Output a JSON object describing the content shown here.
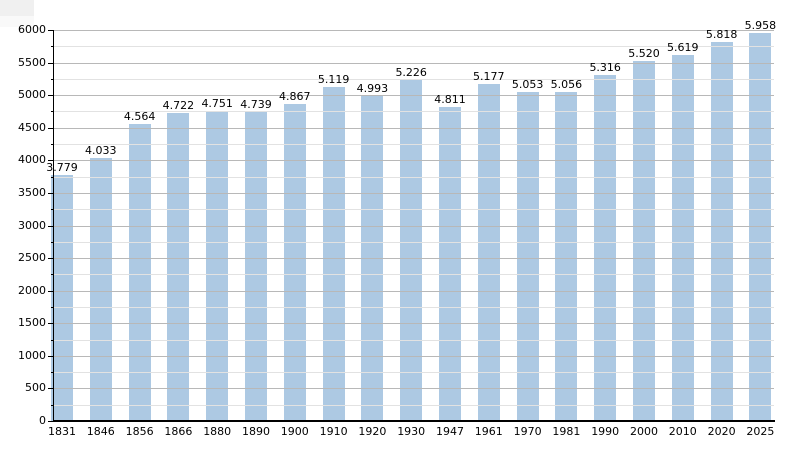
{
  "chart_data": {
    "type": "bar",
    "title": "",
    "xlabel": "",
    "ylabel": "",
    "categories": [
      "1831",
      "1846",
      "1856",
      "1866",
      "1880",
      "1890",
      "1900",
      "1910",
      "1920",
      "1930",
      "1947",
      "1961",
      "1970",
      "1981",
      "1990",
      "2000",
      "2010",
      "2020",
      "2025"
    ],
    "values": [
      3779,
      4033,
      4564,
      4722,
      4751,
      4739,
      4867,
      5119,
      4993,
      5226,
      4811,
      5177,
      5053,
      5056,
      5316,
      5520,
      5619,
      5818,
      5958
    ],
    "bar_labels": [
      "3.779",
      "4.033",
      "4.564",
      "4.722",
      "4.751",
      "4.739",
      "4.867",
      "5.119",
      "4.993",
      "5.226",
      "4.811",
      "5.177",
      "5.053",
      "5.056",
      "5.316",
      "5.520",
      "5.619",
      "5.818",
      "5.958"
    ],
    "ylim": [
      0,
      6000
    ],
    "ytick_major_interval": 500,
    "ytick_minor_interval": 250,
    "ytick_labels": [
      "0",
      "500",
      "1000",
      "1500",
      "2000",
      "2500",
      "3000",
      "3500",
      "4000",
      "4500",
      "5000",
      "5500",
      "6000"
    ],
    "grid": "horizontal major+minor",
    "legend": null,
    "colors": {
      "bar_fill": "#adc9e3",
      "gridline_major": "#b8b8b8",
      "gridline_minor": "#e2e2e2",
      "axis": "#000000",
      "label_text": "#000000",
      "background": "#ffffff"
    }
  }
}
